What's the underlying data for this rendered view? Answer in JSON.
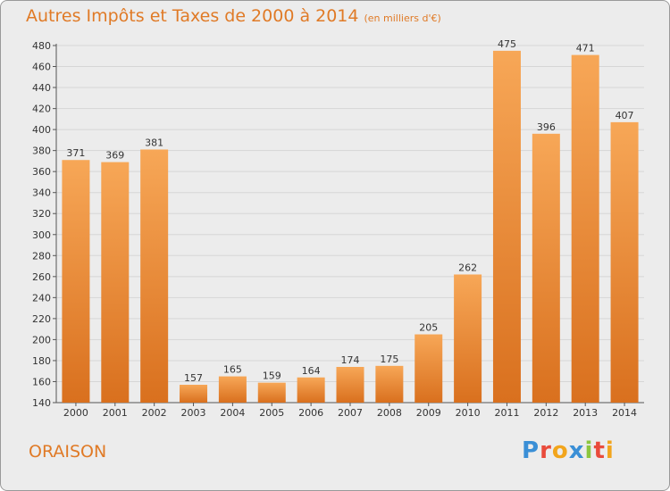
{
  "title": "Autres Impôts et Taxes de 2000 à 2014",
  "unit": "(en milliers d'€)",
  "town": "ORAISON",
  "logo": {
    "text": "Proxiti",
    "letters": [
      {
        "char": "P",
        "color": "#3a8fd6"
      },
      {
        "char": "r",
        "color": "#e94b3c"
      },
      {
        "char": "o",
        "color": "#f2a51c"
      },
      {
        "char": "x",
        "color": "#3a8fd6"
      },
      {
        "char": "i",
        "color": "#8cc63f"
      },
      {
        "char": "t",
        "color": "#e94b3c"
      },
      {
        "char": "i",
        "color": "#f2a51c"
      }
    ]
  },
  "colors": {
    "title": "#e07a26",
    "bar_top": "#f7a757",
    "bar_bottom": "#d9701e",
    "grid": "#d6d6d6",
    "background": "#ececec"
  },
  "chart_data": {
    "type": "bar",
    "categories": [
      "2000",
      "2001",
      "2002",
      "2003",
      "2004",
      "2005",
      "2006",
      "2007",
      "2008",
      "2009",
      "2010",
      "2011",
      "2012",
      "2013",
      "2014"
    ],
    "values": [
      371,
      369,
      381,
      157,
      165,
      159,
      164,
      174,
      175,
      205,
      262,
      475,
      396,
      471,
      407
    ],
    "ylim": [
      140,
      480
    ],
    "yticks": [
      140,
      160,
      180,
      200,
      220,
      240,
      260,
      280,
      300,
      320,
      340,
      360,
      380,
      400,
      420,
      440,
      460,
      480
    ],
    "grid": true,
    "xlabel": "",
    "ylabel": ""
  }
}
